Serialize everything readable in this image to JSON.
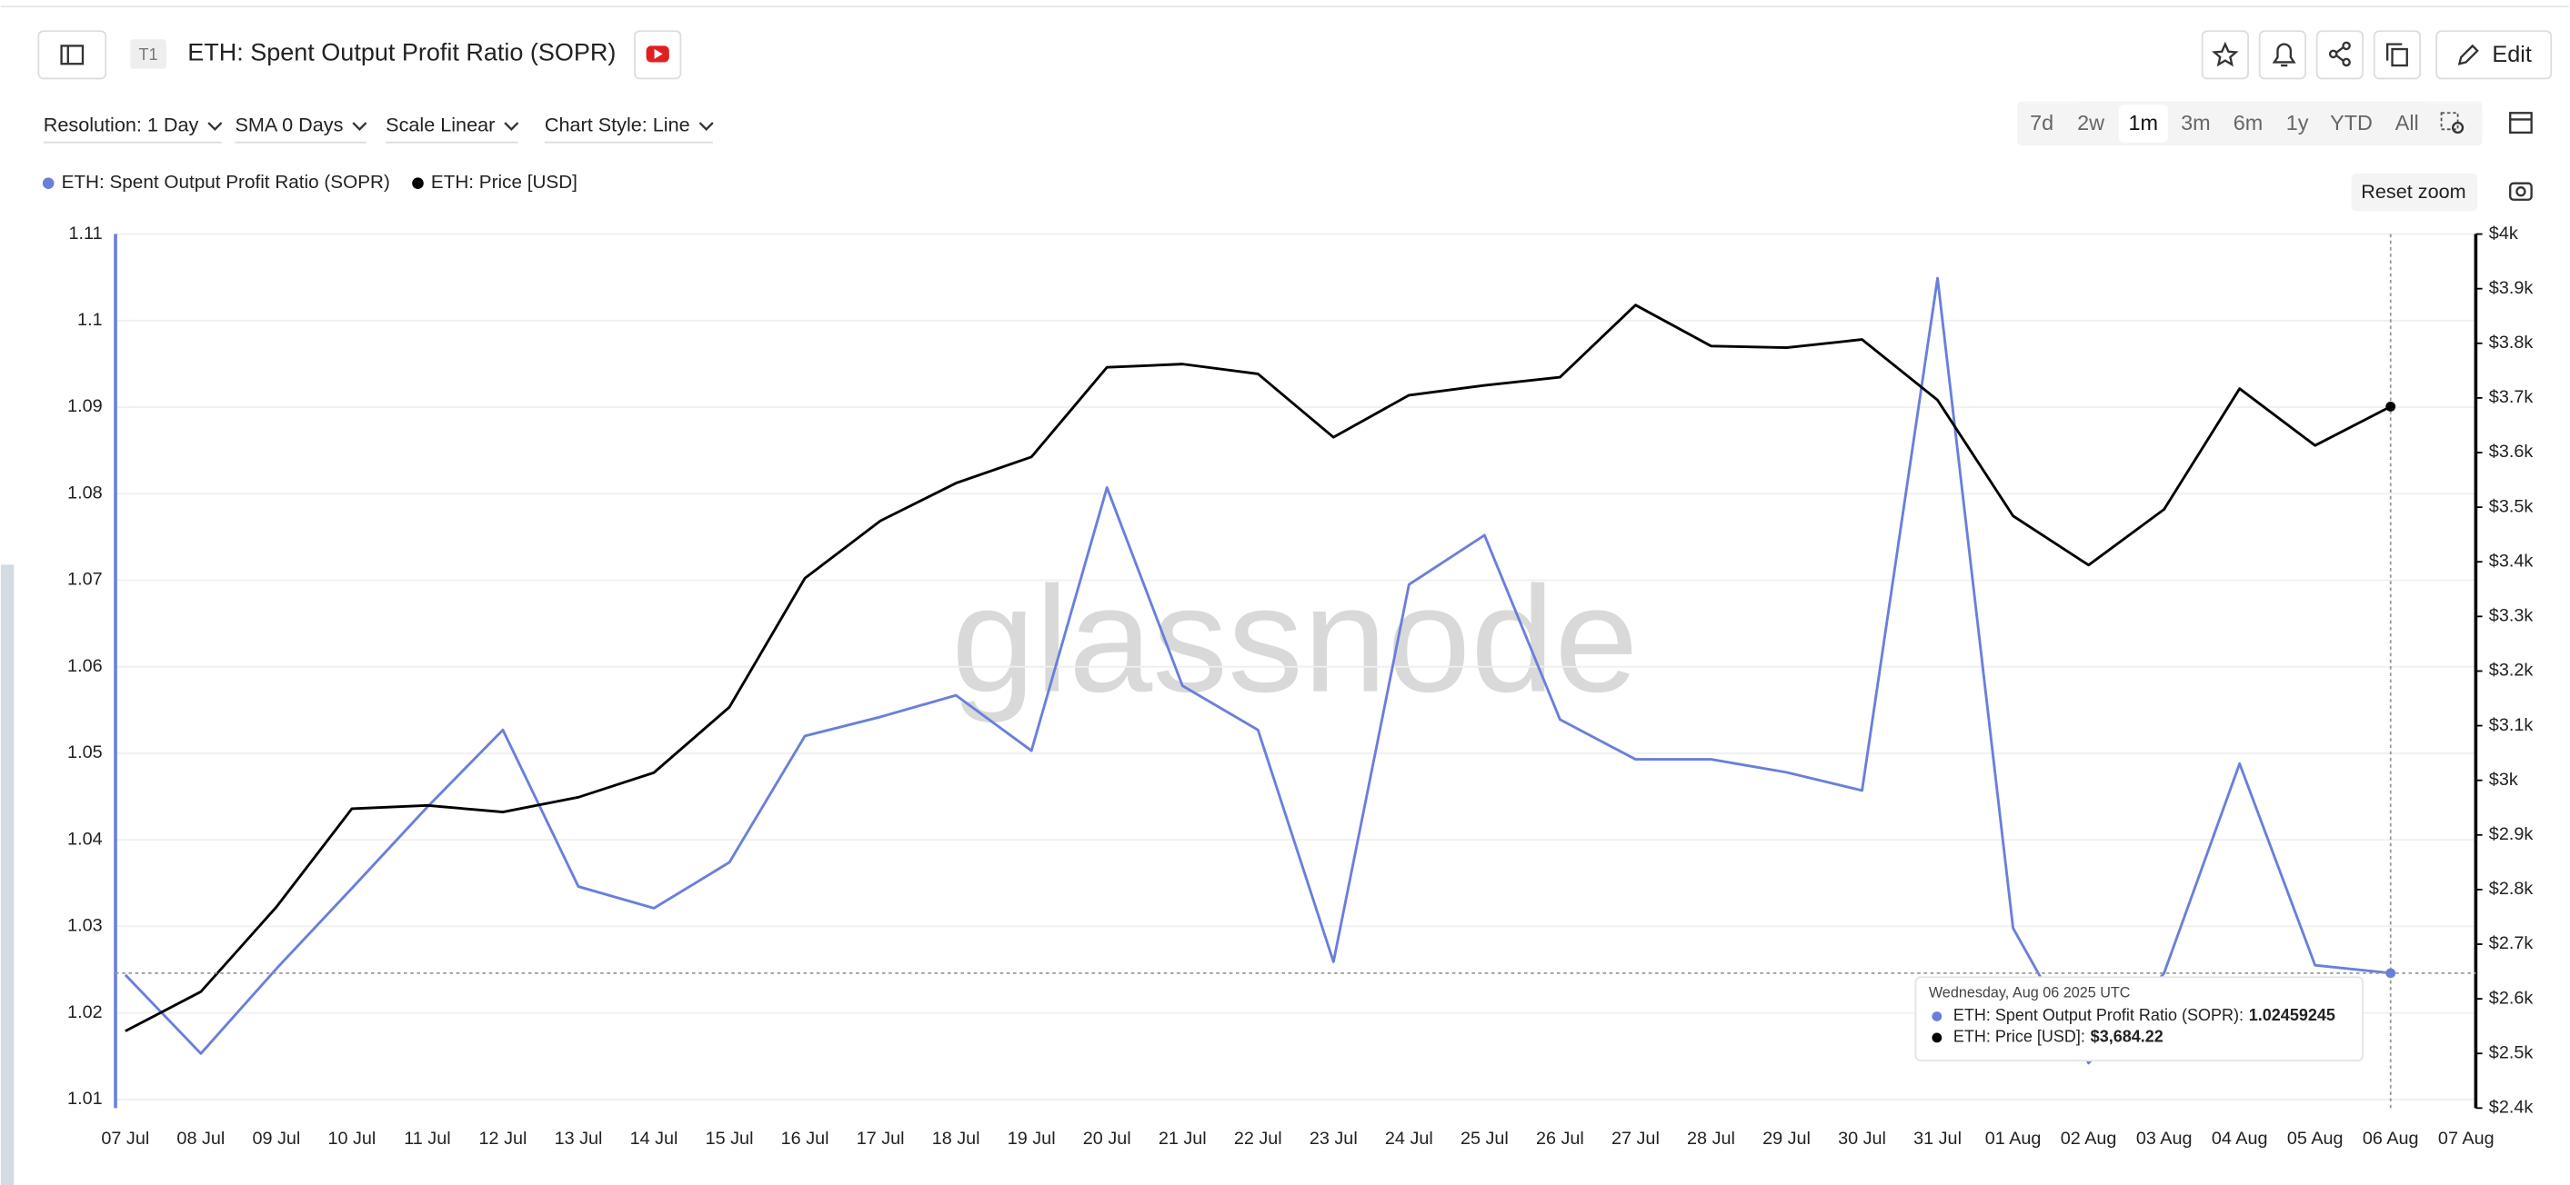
{
  "ui": {
    "badge": "T1",
    "edit": "Edit",
    "controls": [
      "Resolution: 1 Day",
      "SMA 0 Days",
      "Scale Linear",
      "Chart Style: Line"
    ],
    "ranges": [
      "7d",
      "2w",
      "1m",
      "3m",
      "6m",
      "1y",
      "YTD",
      "All"
    ],
    "reset_zoom": "Reset zoom",
    "watermark": "glassnode",
    "tooltip": {
      "date": "Wednesday, Aug 06 2025 UTC",
      "price_label": "$3,684.22"
    }
  },
  "chart_data": {
    "type": "line",
    "title": "ETH: Spent Output Profit Ratio (SOPR)",
    "categories": [
      "07 Jul",
      "08 Jul",
      "09 Jul",
      "10 Jul",
      "11 Jul",
      "12 Jul",
      "13 Jul",
      "14 Jul",
      "15 Jul",
      "16 Jul",
      "17 Jul",
      "18 Jul",
      "19 Jul",
      "20 Jul",
      "21 Jul",
      "22 Jul",
      "23 Jul",
      "24 Jul",
      "25 Jul",
      "26 Jul",
      "27 Jul",
      "28 Jul",
      "29 Jul",
      "30 Jul",
      "31 Jul",
      "01 Aug",
      "02 Aug",
      "03 Aug",
      "04 Aug",
      "05 Aug",
      "06 Aug",
      "07 Aug"
    ],
    "series": [
      {
        "name": "ETH: Spent Output Profit Ratio (SOPR)",
        "color": "#6a7fdb",
        "values": [
          1.0244,
          1.0153,
          1.0251,
          1.0344,
          1.0438,
          1.0527,
          1.0346,
          1.0321,
          1.0374,
          1.052,
          1.0542,
          1.0567,
          1.0503,
          1.0807,
          1.0578,
          1.0527,
          1.0259,
          1.0695,
          1.0752,
          1.0539,
          1.0493,
          1.0493,
          1.0478,
          1.0457,
          1.1049,
          1.0298,
          1.0142,
          1.0246,
          1.0488,
          1.0255,
          1.02459245,
          null
        ]
      },
      {
        "name": "ETH: Price [USD]",
        "color": "#000000",
        "axis": "y2",
        "values": [
          2541,
          2613,
          2768,
          2948,
          2954,
          2942,
          2969,
          3014,
          3134,
          3370,
          3475,
          3544,
          3592,
          3756,
          3762,
          3744,
          3628,
          3705,
          3723,
          3738,
          3870,
          3795,
          3792,
          3807,
          3696,
          3484,
          3394,
          3496,
          3717,
          3613,
          3684.22,
          null
        ]
      }
    ],
    "ylim": [
      1.009,
      1.11
    ],
    "yticks": [
      1.01,
      1.02,
      1.03,
      1.04,
      1.05,
      1.06,
      1.07,
      1.08,
      1.09,
      1.1,
      1.11
    ],
    "y2lim": [
      2400,
      4000
    ],
    "y2ticks": [
      {
        "value": 2400,
        "label": "$2.4k"
      },
      {
        "value": 2500,
        "label": "$2.5k"
      },
      {
        "value": 2600,
        "label": "$2.6k"
      },
      {
        "value": 2700,
        "label": "$2.7k"
      },
      {
        "value": 2800,
        "label": "$2.8k"
      },
      {
        "value": 2900,
        "label": "$2.9k"
      },
      {
        "value": 3000,
        "label": "$3k"
      },
      {
        "value": 3100,
        "label": "$3.1k"
      },
      {
        "value": 3200,
        "label": "$3.2k"
      },
      {
        "value": 3300,
        "label": "$3.3k"
      },
      {
        "value": 3400,
        "label": "$3.4k"
      },
      {
        "value": 3500,
        "label": "$3.5k"
      },
      {
        "value": 3600,
        "label": "$3.6k"
      },
      {
        "value": 3700,
        "label": "$3.7k"
      },
      {
        "value": 3800,
        "label": "$3.8k"
      },
      {
        "value": 3900,
        "label": "$3.9k"
      },
      {
        "value": 4000,
        "label": "$4k"
      }
    ],
    "grid": true
  }
}
